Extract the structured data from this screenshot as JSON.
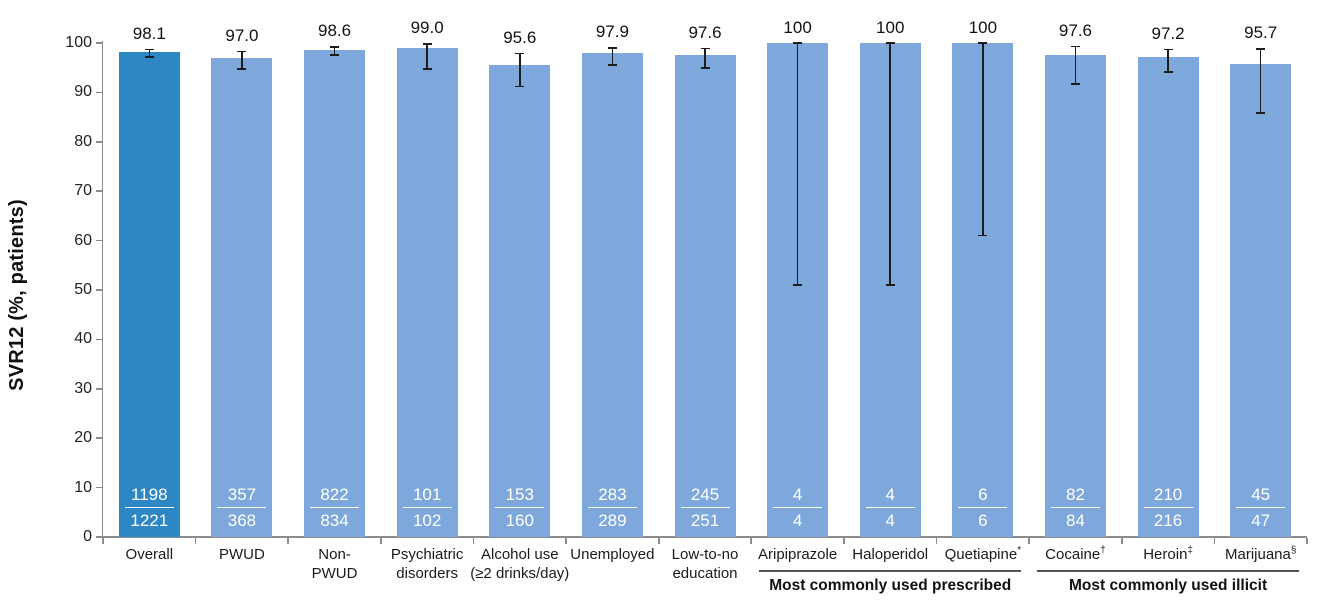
{
  "chart_data": {
    "type": "bar",
    "title": "",
    "xlabel": "",
    "ylabel": "SVR12 (%, patients)",
    "ylim": [
      0,
      100
    ],
    "yticks": [
      0,
      10,
      20,
      30,
      40,
      50,
      60,
      70,
      80,
      90,
      100
    ],
    "grid": false,
    "legend": "none",
    "bars": [
      {
        "label": "Overall",
        "suffix": "",
        "value": 98.1,
        "value_label": "98.1",
        "numerator": "1198",
        "denominator": "1221",
        "ci_low": 97.2,
        "ci_high": 98.7,
        "emphasis": true
      },
      {
        "label": "PWUD",
        "suffix": "",
        "value": 97.0,
        "value_label": "97.0",
        "numerator": "357",
        "denominator": "368",
        "ci_low": 94.7,
        "ci_high": 98.3,
        "emphasis": false
      },
      {
        "label": "Non-\nPWUD",
        "suffix": "",
        "value": 98.6,
        "value_label": "98.6",
        "numerator": "822",
        "denominator": "834",
        "ci_low": 97.5,
        "ci_high": 99.2,
        "emphasis": false
      },
      {
        "label": "Psychiatric\ndisorders",
        "suffix": "",
        "value": 99.0,
        "value_label": "99.0",
        "numerator": "101",
        "denominator": "102",
        "ci_low": 94.7,
        "ci_high": 99.8,
        "emphasis": false
      },
      {
        "label": "Alcohol use\n(≥2 drinks/day)",
        "suffix": "",
        "value": 95.6,
        "value_label": "95.6",
        "numerator": "153",
        "denominator": "160",
        "ci_low": 91.2,
        "ci_high": 97.9,
        "emphasis": false
      },
      {
        "label": "Unemployed",
        "suffix": "",
        "value": 97.9,
        "value_label": "97.9",
        "numerator": "283",
        "denominator": "289",
        "ci_low": 95.5,
        "ci_high": 99.0,
        "emphasis": false
      },
      {
        "label": "Low-to-no\neducation",
        "suffix": "",
        "value": 97.6,
        "value_label": "97.6",
        "numerator": "245",
        "denominator": "251",
        "ci_low": 94.9,
        "ci_high": 98.9,
        "emphasis": false
      },
      {
        "label": "Aripiprazole",
        "suffix": "",
        "value": 100,
        "value_label": "100",
        "numerator": "4",
        "denominator": "4",
        "ci_low": 51.0,
        "ci_high": 100,
        "emphasis": false
      },
      {
        "label": "Haloperidol",
        "suffix": "",
        "value": 100,
        "value_label": "100",
        "numerator": "4",
        "denominator": "4",
        "ci_low": 51.0,
        "ci_high": 100,
        "emphasis": false
      },
      {
        "label": "Quetiapine",
        "suffix": "*",
        "value": 100,
        "value_label": "100",
        "numerator": "6",
        "denominator": "6",
        "ci_low": 61.0,
        "ci_high": 100,
        "emphasis": false
      },
      {
        "label": "Cocaine",
        "suffix": "†",
        "value": 97.6,
        "value_label": "97.6",
        "numerator": "82",
        "denominator": "84",
        "ci_low": 91.7,
        "ci_high": 99.3,
        "emphasis": false
      },
      {
        "label": "Heroin",
        "suffix": "‡",
        "value": 97.2,
        "value_label": "97.2",
        "numerator": "210",
        "denominator": "216",
        "ci_low": 94.1,
        "ci_high": 98.7,
        "emphasis": false
      },
      {
        "label": "Marijuana",
        "suffix": "§",
        "value": 95.7,
        "value_label": "95.7",
        "numerator": "45",
        "denominator": "47",
        "ci_low": 85.8,
        "ci_high": 98.8,
        "emphasis": false
      }
    ],
    "group_annotations": [
      {
        "label": "Most commonly used prescribed",
        "from_index": 7,
        "to_index": 9
      },
      {
        "label": "Most commonly used illicit",
        "from_index": 10,
        "to_index": 12
      }
    ],
    "colors": {
      "bar_default": "#7EA8DB",
      "bar_emphasis": "#2E87C5",
      "error_bar": "#1C1C1C",
      "axis": "#8C8C8C",
      "fraction_text": "#FFFFFF",
      "text": "#111111",
      "group_line": "#555555"
    }
  }
}
